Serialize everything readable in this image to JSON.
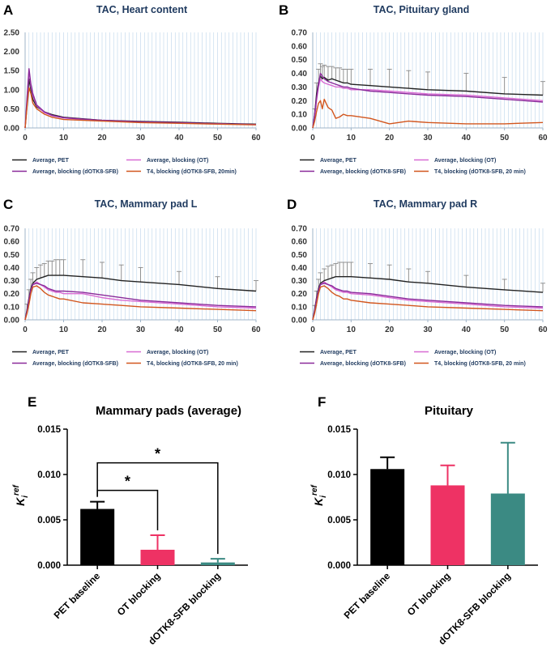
{
  "figure": {
    "panels": [
      "A",
      "B",
      "C",
      "D",
      "E",
      "F"
    ]
  },
  "colors": {
    "pet": "#222222",
    "blocking_ot": "#d86bd3",
    "blocking_dotk": "#8a2a9a",
    "t4": "#d2561e",
    "error": "#888888",
    "grid": "#9fc2e2",
    "bar_pet": "#000000",
    "bar_ot": "#ee3264",
    "bar_dotk": "#3b8a83"
  },
  "chart_data": [
    {
      "panel": "A",
      "type": "line",
      "title": "TAC, Heart content",
      "xlim": [
        0,
        60
      ],
      "ylim": [
        0,
        2.5
      ],
      "xticks": [
        "0",
        "10",
        "20",
        "30",
        "40",
        "50",
        "60"
      ],
      "yticks": [
        "0.00",
        "0.50",
        "1.00",
        "1.50",
        "2.00",
        "2.50"
      ],
      "legend": [
        "Average, PET",
        "Average, blocking (OT)",
        "Average, blocking (dOTK8-SFB)",
        "T4, blocking (dOTK8-SFB, 20min)"
      ],
      "series": [
        {
          "name": "Average, PET",
          "color_key": "pet",
          "x": [
            0,
            0.5,
            1,
            1.5,
            2,
            3,
            5,
            7,
            10,
            15,
            20,
            30,
            40,
            50,
            60
          ],
          "y": [
            0,
            0.6,
            1.28,
            1.0,
            0.75,
            0.55,
            0.42,
            0.35,
            0.28,
            0.24,
            0.2,
            0.17,
            0.15,
            0.12,
            0.1
          ]
        },
        {
          "name": "Average, blocking (OT)",
          "color_key": "blocking_ot",
          "x": [
            0,
            0.5,
            1,
            1.5,
            2,
            3,
            5,
            7,
            10,
            15,
            20,
            30,
            40,
            50,
            60
          ],
          "y": [
            0,
            0.7,
            1.5,
            1.1,
            0.85,
            0.58,
            0.4,
            0.32,
            0.26,
            0.22,
            0.19,
            0.15,
            0.13,
            0.11,
            0.09
          ]
        },
        {
          "name": "Average, blocking (dOTK8-SFB)",
          "color_key": "blocking_dotk",
          "x": [
            0,
            0.5,
            1,
            1.5,
            2,
            3,
            5,
            7,
            10,
            15,
            20,
            30,
            40,
            50,
            60
          ],
          "y": [
            0,
            0.8,
            1.55,
            1.15,
            0.9,
            0.6,
            0.42,
            0.33,
            0.27,
            0.23,
            0.2,
            0.16,
            0.14,
            0.11,
            0.09
          ]
        },
        {
          "name": "T4, blocking (dOTK8-SFB, 20min)",
          "color_key": "t4",
          "x": [
            0,
            0.5,
            1,
            1.5,
            2,
            3,
            5,
            7,
            10,
            15,
            20,
            30,
            40,
            50,
            60
          ],
          "y": [
            0,
            0.55,
            1.05,
            0.9,
            0.65,
            0.5,
            0.36,
            0.28,
            0.22,
            0.2,
            0.18,
            0.14,
            0.12,
            0.1,
            0.08
          ]
        }
      ]
    },
    {
      "panel": "B",
      "type": "line",
      "title": "TAC, Pituitary gland",
      "xlim": [
        0,
        60
      ],
      "ylim": [
        0,
        0.7
      ],
      "xticks": [
        "0",
        "10",
        "20",
        "30",
        "40",
        "50",
        "60"
      ],
      "yticks": [
        "0.00",
        "0.10",
        "0.20",
        "0.30",
        "0.40",
        "0.50",
        "0.60",
        "0.70"
      ],
      "legend": [
        "Average, PET",
        "Average, blocking (OT)",
        "Average, blocking (dOTK8-SFB)",
        "T4, blocking (dOTK8-SFB, 20 min)"
      ],
      "series": [
        {
          "name": "Average, PET",
          "color_key": "pet",
          "x": [
            0,
            0.5,
            1,
            1.5,
            2,
            2.5,
            3,
            4,
            5,
            6,
            7,
            8,
            9,
            10,
            15,
            20,
            25,
            30,
            40,
            50,
            60
          ],
          "y": [
            0,
            0.1,
            0.25,
            0.33,
            0.38,
            0.36,
            0.37,
            0.35,
            0.36,
            0.35,
            0.34,
            0.33,
            0.33,
            0.32,
            0.31,
            0.3,
            0.29,
            0.28,
            0.27,
            0.25,
            0.24
          ],
          "err": [
            0,
            0.04,
            0.08,
            0.1,
            0.09,
            0.09,
            0.09,
            0.1,
            0.09,
            0.09,
            0.1,
            0.1,
            0.1,
            0.11,
            0.12,
            0.13,
            0.13,
            0.13,
            0.13,
            0.12,
            0.1
          ]
        },
        {
          "name": "Average, blocking (OT)",
          "color_key": "blocking_ot",
          "x": [
            0,
            0.5,
            1,
            1.5,
            2,
            2.5,
            3,
            4,
            5,
            6,
            7,
            8,
            9,
            10,
            15,
            20,
            25,
            30,
            40,
            50,
            60
          ],
          "y": [
            0,
            0.08,
            0.2,
            0.3,
            0.36,
            0.34,
            0.33,
            0.32,
            0.31,
            0.3,
            0.3,
            0.29,
            0.29,
            0.28,
            0.28,
            0.27,
            0.26,
            0.25,
            0.24,
            0.22,
            0.2
          ]
        },
        {
          "name": "Average, blocking (dOTK8-SFB)",
          "color_key": "blocking_dotk",
          "x": [
            0,
            0.5,
            1,
            1.5,
            2,
            2.5,
            3,
            4,
            5,
            6,
            7,
            8,
            9,
            10,
            15,
            20,
            25,
            30,
            40,
            50,
            60
          ],
          "y": [
            0,
            0.1,
            0.22,
            0.32,
            0.4,
            0.38,
            0.36,
            0.34,
            0.33,
            0.32,
            0.31,
            0.3,
            0.3,
            0.29,
            0.27,
            0.26,
            0.25,
            0.24,
            0.23,
            0.21,
            0.19
          ]
        },
        {
          "name": "T4, blocking (dOTK8-SFB, 20 min)",
          "color_key": "t4",
          "x": [
            0,
            0.5,
            1,
            1.5,
            2,
            2.5,
            3,
            4,
            5,
            6,
            7,
            8,
            9,
            10,
            15,
            20,
            25,
            30,
            40,
            50,
            60
          ],
          "y": [
            0,
            0.05,
            0.12,
            0.18,
            0.2,
            0.14,
            0.21,
            0.15,
            0.13,
            0.07,
            0.08,
            0.1,
            0.09,
            0.09,
            0.07,
            0.03,
            0.05,
            0.04,
            0.03,
            0.03,
            0.04
          ]
        }
      ]
    },
    {
      "panel": "C",
      "type": "line",
      "title": "TAC, Mammary pad L",
      "xlim": [
        0,
        60
      ],
      "ylim": [
        0,
        0.7
      ],
      "xticks": [
        "0",
        "10",
        "20",
        "30",
        "40",
        "50",
        "60"
      ],
      "yticks": [
        "0.00",
        "0.10",
        "0.20",
        "0.30",
        "0.40",
        "0.50",
        "0.60",
        "0.70"
      ],
      "legend": [
        "Average, PET",
        "Average, blocking (OT)",
        "Average, blocking (dOTK8-SFB)",
        "T4, blocking (dOTK8-SFB, 20 min)"
      ],
      "series": [
        {
          "name": "Average, PET",
          "color_key": "pet",
          "x": [
            0,
            0.5,
            1,
            1.5,
            2,
            3,
            4,
            5,
            6,
            7,
            8,
            9,
            10,
            15,
            20,
            25,
            30,
            40,
            50,
            60
          ],
          "y": [
            0,
            0.08,
            0.17,
            0.24,
            0.28,
            0.31,
            0.32,
            0.33,
            0.34,
            0.34,
            0.34,
            0.34,
            0.34,
            0.33,
            0.32,
            0.3,
            0.29,
            0.27,
            0.24,
            0.22
          ],
          "err": [
            0,
            0.04,
            0.06,
            0.07,
            0.08,
            0.09,
            0.1,
            0.1,
            0.11,
            0.11,
            0.12,
            0.12,
            0.12,
            0.13,
            0.12,
            0.12,
            0.11,
            0.1,
            0.09,
            0.08
          ]
        },
        {
          "name": "Average, blocking (OT)",
          "color_key": "blocking_ot",
          "x": [
            0,
            0.5,
            1,
            1.5,
            2,
            3,
            4,
            5,
            6,
            7,
            8,
            9,
            10,
            15,
            20,
            25,
            30,
            40,
            50,
            60
          ],
          "y": [
            0,
            0.06,
            0.14,
            0.22,
            0.27,
            0.29,
            0.27,
            0.25,
            0.23,
            0.22,
            0.21,
            0.21,
            0.2,
            0.2,
            0.17,
            0.15,
            0.14,
            0.12,
            0.1,
            0.09
          ]
        },
        {
          "name": "Average, blocking (dOTK8-SFB)",
          "color_key": "blocking_dotk",
          "x": [
            0,
            0.5,
            1,
            1.5,
            2,
            3,
            4,
            5,
            6,
            7,
            8,
            9,
            10,
            15,
            20,
            25,
            30,
            40,
            50,
            60
          ],
          "y": [
            0,
            0.07,
            0.16,
            0.23,
            0.27,
            0.28,
            0.27,
            0.26,
            0.24,
            0.23,
            0.22,
            0.22,
            0.22,
            0.21,
            0.19,
            0.17,
            0.15,
            0.13,
            0.11,
            0.1
          ]
        },
        {
          "name": "T4, blocking (dOTK8-SFB, 20 min)",
          "color_key": "t4",
          "x": [
            0,
            0.5,
            1,
            1.5,
            2,
            3,
            4,
            5,
            6,
            7,
            8,
            9,
            10,
            15,
            20,
            25,
            30,
            40,
            50,
            60
          ],
          "y": [
            0,
            0.05,
            0.12,
            0.2,
            0.25,
            0.26,
            0.24,
            0.21,
            0.19,
            0.18,
            0.17,
            0.16,
            0.16,
            0.13,
            0.12,
            0.11,
            0.1,
            0.09,
            0.08,
            0.07
          ]
        }
      ]
    },
    {
      "panel": "D",
      "type": "line",
      "title": "TAC, Mammary pad R",
      "xlim": [
        0,
        60
      ],
      "ylim": [
        0,
        0.7
      ],
      "xticks": [
        "0",
        "10",
        "20",
        "30",
        "40",
        "50",
        "60"
      ],
      "yticks": [
        "0.00",
        "0.10",
        "0.20",
        "0.30",
        "0.40",
        "0.50",
        "0.60",
        "0.70"
      ],
      "legend": [
        "Average, PET",
        "Average, blocking (OT)",
        "Average, blocking (dOTK8-SFB)",
        "T4, blocking (dOTK8-SFB, 20 min)"
      ],
      "series": [
        {
          "name": "Average, PET",
          "color_key": "pet",
          "x": [
            0,
            0.5,
            1,
            1.5,
            2,
            3,
            4,
            5,
            6,
            7,
            8,
            9,
            10,
            15,
            20,
            25,
            30,
            40,
            50,
            60
          ],
          "y": [
            0,
            0.08,
            0.17,
            0.24,
            0.28,
            0.3,
            0.31,
            0.32,
            0.33,
            0.33,
            0.33,
            0.33,
            0.33,
            0.32,
            0.31,
            0.29,
            0.28,
            0.25,
            0.23,
            0.21
          ],
          "err": [
            0,
            0.03,
            0.05,
            0.07,
            0.08,
            0.09,
            0.1,
            0.1,
            0.1,
            0.11,
            0.11,
            0.11,
            0.11,
            0.11,
            0.11,
            0.1,
            0.09,
            0.09,
            0.08,
            0.07
          ]
        },
        {
          "name": "Average, blocking (OT)",
          "color_key": "blocking_ot",
          "x": [
            0,
            0.5,
            1,
            1.5,
            2,
            3,
            4,
            5,
            6,
            7,
            8,
            9,
            10,
            15,
            20,
            25,
            30,
            40,
            50,
            60
          ],
          "y": [
            0,
            0.06,
            0.15,
            0.22,
            0.27,
            0.29,
            0.27,
            0.25,
            0.23,
            0.22,
            0.21,
            0.21,
            0.2,
            0.19,
            0.17,
            0.15,
            0.14,
            0.12,
            0.1,
            0.09
          ]
        },
        {
          "name": "Average, blocking (dOTK8-SFB)",
          "color_key": "blocking_dotk",
          "x": [
            0,
            0.5,
            1,
            1.5,
            2,
            3,
            4,
            5,
            6,
            7,
            8,
            9,
            10,
            15,
            20,
            25,
            30,
            40,
            50,
            60
          ],
          "y": [
            0,
            0.07,
            0.16,
            0.23,
            0.27,
            0.28,
            0.27,
            0.26,
            0.24,
            0.23,
            0.22,
            0.22,
            0.21,
            0.2,
            0.18,
            0.16,
            0.15,
            0.13,
            0.11,
            0.1
          ]
        },
        {
          "name": "T4, blocking (dOTK8-SFB, 20 min)",
          "color_key": "t4",
          "x": [
            0,
            0.5,
            1,
            1.5,
            2,
            3,
            4,
            5,
            6,
            7,
            8,
            9,
            10,
            15,
            20,
            25,
            30,
            40,
            50,
            60
          ],
          "y": [
            0,
            0.05,
            0.12,
            0.2,
            0.25,
            0.26,
            0.24,
            0.21,
            0.19,
            0.18,
            0.16,
            0.16,
            0.15,
            0.13,
            0.12,
            0.11,
            0.1,
            0.09,
            0.08,
            0.07
          ]
        }
      ]
    },
    {
      "panel": "E",
      "type": "bar",
      "title": "Mammary pads (average)",
      "ylabel_main": "K",
      "ylabel_sub": "i",
      "ylabel_sup": "ref",
      "ylim": [
        0,
        0.015
      ],
      "yticks": [
        "0.000",
        "0.005",
        "0.010",
        "0.015"
      ],
      "categories": [
        "PET baseline",
        "OT blocking",
        "dOTK8-SFB blocking"
      ],
      "values": [
        0.0062,
        0.0017,
        0.0003
      ],
      "errors": [
        0.0008,
        0.0016,
        0.0004
      ],
      "color_keys": [
        "bar_pet",
        "bar_ot",
        "bar_dotk"
      ],
      "significance": [
        {
          "from": 0,
          "to": 1,
          "label": "*"
        },
        {
          "from": 0,
          "to": 2,
          "label": "*"
        }
      ]
    },
    {
      "panel": "F",
      "type": "bar",
      "title": "Pituitary",
      "ylabel_main": "K",
      "ylabel_sub": "i",
      "ylabel_sup": "ref",
      "ylim": [
        0,
        0.015
      ],
      "yticks": [
        "0.000",
        "0.005",
        "0.010",
        "0.015"
      ],
      "categories": [
        "PET baseline",
        "OT blocking",
        "dOTK8-SFB blocking"
      ],
      "values": [
        0.0106,
        0.0088,
        0.0079
      ],
      "errors": [
        0.0013,
        0.0022,
        0.0056
      ],
      "color_keys": [
        "bar_pet",
        "bar_ot",
        "bar_dotk"
      ],
      "significance": []
    }
  ]
}
